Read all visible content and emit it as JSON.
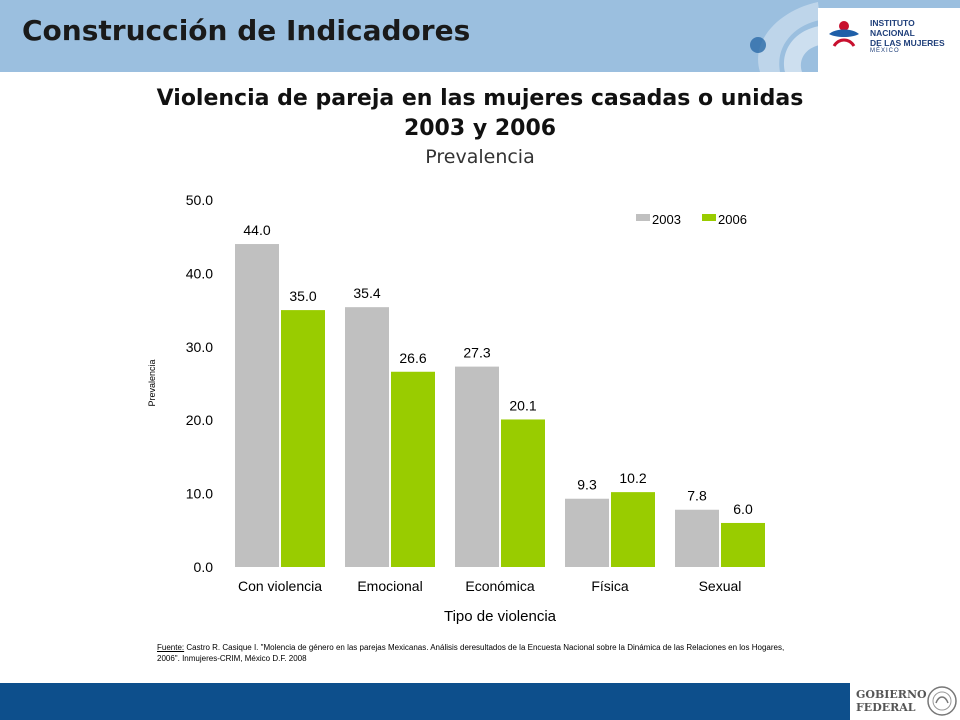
{
  "header": {
    "title": "Construcción de Indicadores",
    "logo_lines": [
      "INSTITUTO NACIONAL",
      "DE LAS MUJERES"
    ],
    "logo_sub": "MÉXICO"
  },
  "chart_data": {
    "type": "bar",
    "title_lines": [
      "Violencia de pareja en las mujeres casadas o unidas",
      "2003 y 2006"
    ],
    "subtitle": "Prevalencia",
    "xlabel": "Tipo de violencia",
    "ylabel": "Prevalencia",
    "categories": [
      "Con violencia",
      "Emocional",
      "Económica",
      "Física",
      "Sexual"
    ],
    "series": [
      {
        "name": "2003",
        "values": [
          44.0,
          35.4,
          27.3,
          9.3,
          7.8
        ],
        "color": "#c0c0c0"
      },
      {
        "name": "2006",
        "values": [
          35.0,
          26.6,
          20.1,
          10.2,
          6.0
        ],
        "color": "#99cc00"
      }
    ],
    "ylim": [
      0,
      50
    ],
    "yticks": [
      "0.0",
      "10.0",
      "20.0",
      "30.0",
      "40.0",
      "50.0"
    ],
    "legend_position": "top-right",
    "grid": false
  },
  "source": {
    "label": "Fuente:",
    "text": " Castro R. Casique I. \"Molencia de género en las parejas Mexicanas. Análisis deresultados de la Encuesta Nacional sobre la Dinámica de las Relaciones en los Hogares, 2006\". Inmujeres-CRIM, México D.F. 2008"
  },
  "footer": {
    "gob_lines": [
      "GOBIERNO",
      "FEDERAL"
    ]
  }
}
